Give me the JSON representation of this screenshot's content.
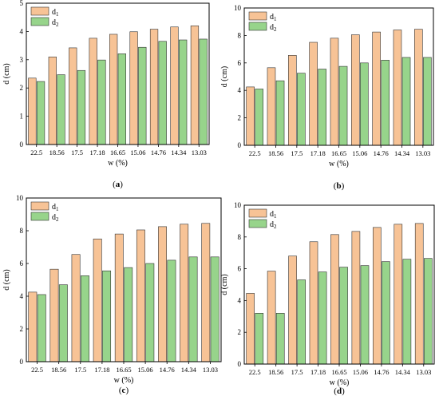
{
  "figure": {
    "colors": {
      "d1": "#F7C396",
      "d2": "#97D48B",
      "edge": "#333333"
    }
  },
  "chart_data": [
    {
      "type": "bar",
      "panel_label": "(a)",
      "ylabel": "d (cm)",
      "xlabel": "w (%)",
      "ylim": [
        0,
        5
      ],
      "yticks": [
        "0",
        "1",
        "2",
        "3",
        "4",
        "5"
      ],
      "legend_position": "top-left",
      "categories": [
        "22.5",
        "18.56",
        "17.5",
        "17.18",
        "16.65",
        "15.06",
        "14.76",
        "14.34",
        "13.03"
      ],
      "series": [
        {
          "name": "d",
          "sub": "1",
          "values": [
            2.35,
            3.1,
            3.42,
            3.76,
            3.9,
            3.99,
            4.08,
            4.16,
            4.2
          ]
        },
        {
          "name": "d",
          "sub": "2",
          "values": [
            2.23,
            2.47,
            2.62,
            2.99,
            3.21,
            3.44,
            3.65,
            3.7,
            3.73
          ]
        }
      ]
    },
    {
      "type": "bar",
      "panel_label": "(b)",
      "ylabel": "d (cm)",
      "xlabel": "w (%)",
      "ylim": [
        0,
        10
      ],
      "yticks": [
        "0",
        "2",
        "4",
        "6",
        "8",
        "10"
      ],
      "legend_position": "top-left",
      "categories": [
        "22.5",
        "18.56",
        "17.5",
        "17.18",
        "16.65",
        "15.06",
        "14.76",
        "14.34",
        "13.03"
      ],
      "series": [
        {
          "name": "d",
          "sub": "1",
          "values": [
            4.25,
            5.65,
            6.55,
            7.5,
            7.8,
            8.05,
            8.25,
            8.4,
            8.45
          ]
        },
        {
          "name": "d",
          "sub": "2",
          "values": [
            4.1,
            4.7,
            5.25,
            5.55,
            5.75,
            6.0,
            6.2,
            6.4,
            6.4
          ]
        }
      ]
    },
    {
      "type": "bar",
      "panel_label": "(c)",
      "ylabel": "d (cm)",
      "xlabel": "w (%)",
      "ylim": [
        0,
        10
      ],
      "yticks": [
        "0",
        "2",
        "4",
        "6",
        "8",
        "10"
      ],
      "legend_position": "top-left",
      "categories": [
        "22.5",
        "18.56",
        "17.5",
        "17.18",
        "16.65",
        "15.06",
        "14.76",
        "14.34",
        "13.03"
      ],
      "series": [
        {
          "name": "d",
          "sub": "1",
          "values": [
            4.25,
            5.65,
            6.55,
            7.5,
            7.8,
            8.05,
            8.25,
            8.4,
            8.45
          ]
        },
        {
          "name": "d",
          "sub": "2",
          "values": [
            4.1,
            4.7,
            5.25,
            5.55,
            5.75,
            6.0,
            6.2,
            6.4,
            6.4
          ]
        }
      ]
    },
    {
      "type": "bar",
      "panel_label": "(d)",
      "ylabel": "d (cm)",
      "xlabel": "w (%)",
      "ylim": [
        0,
        10
      ],
      "yticks": [
        "0",
        "2",
        "4",
        "6",
        "8",
        "10"
      ],
      "legend_position": "top-left",
      "categories": [
        "22.5",
        "18.56",
        "17.5",
        "17.18",
        "16.65",
        "15.06",
        "14.76",
        "14.34",
        "13.03"
      ],
      "series": [
        {
          "name": "d",
          "sub": "1",
          "values": [
            4.45,
            5.85,
            6.8,
            7.7,
            8.15,
            8.35,
            8.6,
            8.8,
            8.85
          ]
        },
        {
          "name": "d",
          "sub": "2",
          "values": [
            3.2,
            3.2,
            5.3,
            5.8,
            6.1,
            6.2,
            6.45,
            6.6,
            6.65
          ]
        }
      ]
    }
  ]
}
